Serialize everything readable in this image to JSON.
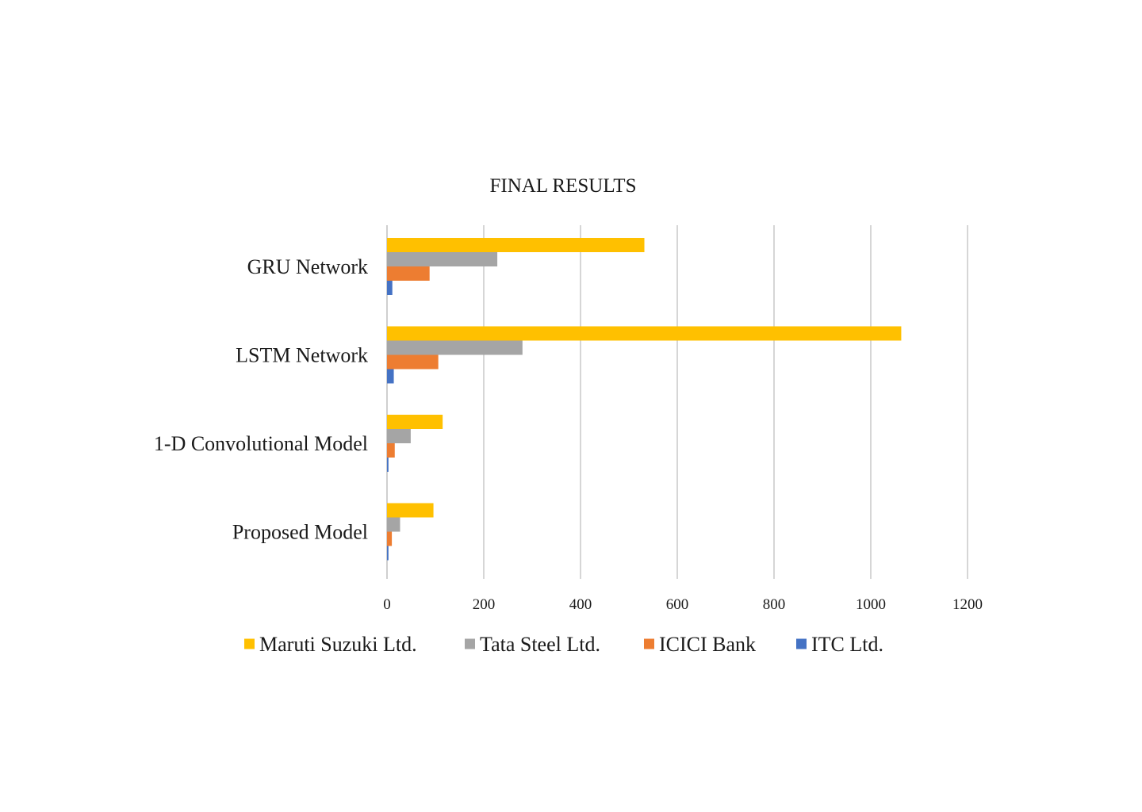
{
  "chart_data": {
    "type": "bar",
    "orientation": "horizontal",
    "title": "FINAL RESULTS",
    "categories": [
      "GRU Network",
      "LSTM Network",
      "1-D Convolutional Model",
      "Proposed Model"
    ],
    "series": [
      {
        "name": "Maruti Suzuki Ltd.",
        "color": "#FFC000",
        "values": [
          532,
          1063,
          115,
          96
        ]
      },
      {
        "name": "Tata Steel Ltd.",
        "color": "#A5A5A5",
        "values": [
          228,
          280,
          49,
          27
        ]
      },
      {
        "name": "ICICI Bank",
        "color": "#ED7D31",
        "values": [
          88,
          106,
          16,
          10
        ]
      },
      {
        "name": "ITC Ltd.",
        "color": "#4472C4",
        "values": [
          11,
          14,
          3,
          3
        ]
      }
    ],
    "xlim": [
      0,
      1200
    ],
    "xticks": [
      "0",
      "200",
      "400",
      "600",
      "800",
      "1000",
      "1200"
    ],
    "xlabel": "",
    "ylabel": "",
    "grid": true,
    "legend_position": "bottom"
  }
}
